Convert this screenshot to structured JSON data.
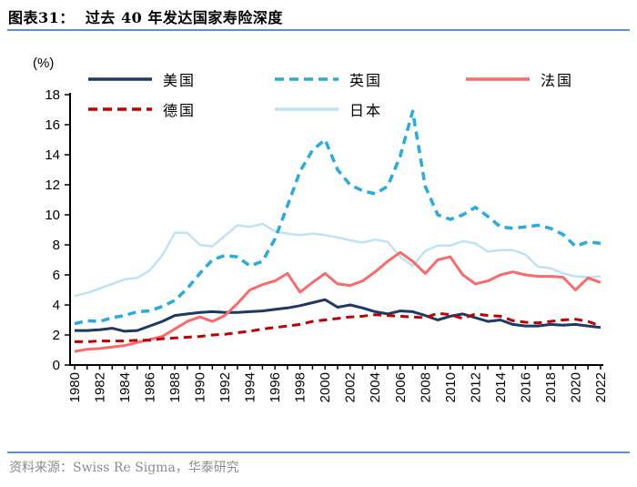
{
  "header": {
    "title": "图表31：  过去 40 年发达国家寿险深度"
  },
  "y_axis_unit": "(%)",
  "footer": {
    "source": "资料来源：Swiss Re Sigma，华泰研究"
  },
  "colors": {
    "rule_blue": "#5b93c8",
    "axis_black": "#000000",
    "source_gray": "#8c8c8c"
  },
  "chart_data": {
    "type": "line",
    "title": "过去 40 年发达国家寿险深度",
    "ylabel": "(%)",
    "ylim": [
      0,
      18
    ],
    "ytick_step": 2,
    "xtick_label_step": 2,
    "grid": false,
    "legend_position": "top",
    "x": [
      1980,
      1981,
      1982,
      1983,
      1984,
      1985,
      1986,
      1987,
      1988,
      1989,
      1990,
      1991,
      1992,
      1993,
      1994,
      1995,
      1996,
      1997,
      1998,
      1999,
      2000,
      2001,
      2002,
      2003,
      2004,
      2005,
      2006,
      2007,
      2008,
      2009,
      2010,
      2011,
      2012,
      2013,
      2014,
      2015,
      2016,
      2017,
      2018,
      2019,
      2020,
      2021,
      2022
    ],
    "series": [
      {
        "key": "us",
        "name": "美国",
        "color": "#1F3864",
        "dash": false,
        "width": 3,
        "values": [
          2.3,
          2.3,
          2.35,
          2.45,
          2.25,
          2.3,
          2.6,
          2.9,
          3.3,
          3.4,
          3.5,
          3.55,
          3.5,
          3.5,
          3.55,
          3.6,
          3.7,
          3.8,
          3.95,
          4.15,
          4.35,
          3.85,
          4.0,
          3.8,
          3.55,
          3.4,
          3.6,
          3.55,
          3.3,
          3.0,
          3.25,
          3.4,
          3.15,
          2.9,
          3.0,
          2.7,
          2.6,
          2.6,
          2.7,
          2.65,
          2.7,
          2.6,
          2.5
        ]
      },
      {
        "key": "uk",
        "name": "英国",
        "color": "#29ABE2",
        "dash": true,
        "width": 3.5,
        "values": [
          2.75,
          2.95,
          2.9,
          3.15,
          3.3,
          3.55,
          3.6,
          3.9,
          4.3,
          5.1,
          6.1,
          7.0,
          7.3,
          7.2,
          6.6,
          6.9,
          8.4,
          10.6,
          12.9,
          14.3,
          15.0,
          13.0,
          12.0,
          11.6,
          11.4,
          11.9,
          13.9,
          16.9,
          11.9,
          10.0,
          9.7,
          10.0,
          10.5,
          9.9,
          9.2,
          9.1,
          9.2,
          9.3,
          9.1,
          8.7,
          7.9,
          8.2,
          8.1
        ]
      },
      {
        "key": "france",
        "name": "法国",
        "color": "#F96B6B",
        "dash": false,
        "width": 3,
        "values": [
          0.9,
          1.05,
          1.1,
          1.2,
          1.3,
          1.5,
          1.7,
          1.9,
          2.4,
          2.9,
          3.2,
          2.9,
          3.3,
          4.1,
          5.0,
          5.35,
          5.6,
          6.1,
          4.85,
          5.5,
          6.1,
          5.4,
          5.3,
          5.6,
          6.2,
          6.9,
          7.5,
          6.9,
          6.1,
          7.0,
          7.2,
          6.0,
          5.4,
          5.6,
          6.0,
          6.2,
          6.0,
          5.9,
          5.9,
          5.85,
          5.0,
          5.8,
          5.5
        ]
      },
      {
        "key": "germany",
        "name": "德国",
        "color": "#C00000",
        "dash": true,
        "width": 3,
        "values": [
          1.55,
          1.55,
          1.6,
          1.6,
          1.6,
          1.65,
          1.65,
          1.75,
          1.8,
          1.85,
          1.9,
          2.0,
          2.05,
          2.15,
          2.25,
          2.4,
          2.5,
          2.6,
          2.7,
          2.9,
          3.0,
          3.1,
          3.2,
          3.25,
          3.35,
          3.3,
          3.25,
          3.2,
          3.15,
          3.45,
          3.35,
          3.1,
          3.4,
          3.3,
          3.25,
          2.95,
          2.85,
          2.8,
          2.9,
          3.0,
          3.05,
          2.9,
          2.6
        ]
      },
      {
        "key": "japan",
        "name": "日本",
        "color": "#BDE3F5",
        "dash": false,
        "width": 2.5,
        "values": [
          4.6,
          4.8,
          5.1,
          5.4,
          5.7,
          5.8,
          6.3,
          7.3,
          8.8,
          8.8,
          8.0,
          7.9,
          8.6,
          9.3,
          9.2,
          9.4,
          8.9,
          8.75,
          8.65,
          8.75,
          8.65,
          8.5,
          8.3,
          8.15,
          8.35,
          8.2,
          7.2,
          6.6,
          7.6,
          7.95,
          7.95,
          8.25,
          8.1,
          7.55,
          7.65,
          7.65,
          7.35,
          6.55,
          6.45,
          6.1,
          5.9,
          5.85,
          5.9
        ]
      }
    ]
  }
}
